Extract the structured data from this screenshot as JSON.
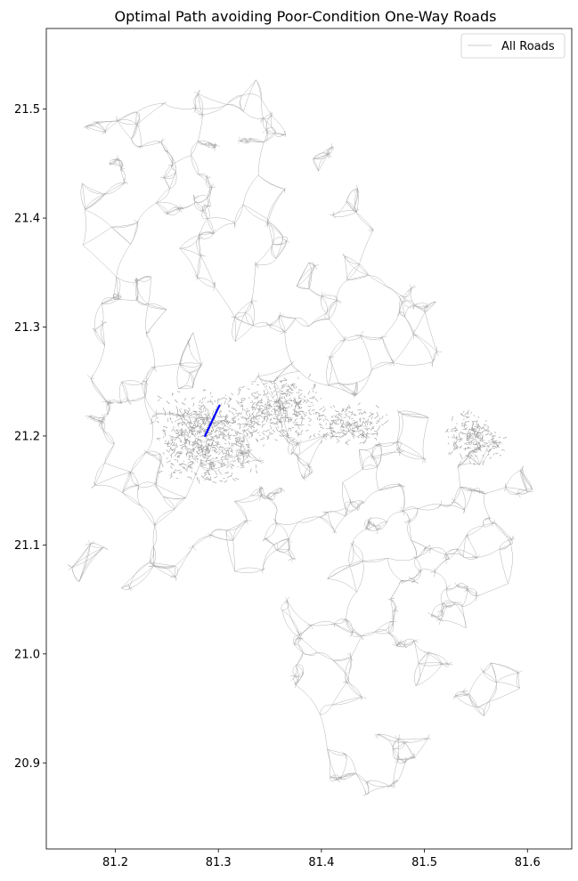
{
  "chart_data": {
    "type": "map",
    "title": "Optimal Path avoiding Poor-Condition One-Way Roads",
    "xlabel": "",
    "ylabel": "",
    "xlim": [
      81.133,
      81.643
    ],
    "ylim": [
      20.821,
      21.574
    ],
    "x_ticks": [
      81.2,
      81.3,
      81.4,
      81.5,
      81.6
    ],
    "x_tick_labels": [
      "81.2",
      "81.3",
      "81.4",
      "81.5",
      "81.6"
    ],
    "y_ticks": [
      20.9,
      21.0,
      21.1,
      21.2,
      21.3,
      21.4,
      21.5
    ],
    "y_tick_labels": [
      "20.9",
      "21.0",
      "21.1",
      "21.2",
      "21.3",
      "21.4",
      "21.5"
    ],
    "grid": false,
    "legend": {
      "position": "top-right",
      "entries": [
        {
          "label": "All Roads",
          "color": "#bbbbbb"
        }
      ]
    },
    "series": [
      {
        "name": "All Roads",
        "color": "#a6a6a6",
        "region_outline": [
          [
            81.165,
            21.495
          ],
          [
            81.2,
            21.51
          ],
          [
            81.255,
            21.525
          ],
          [
            81.31,
            21.535
          ],
          [
            81.355,
            21.53
          ],
          [
            81.39,
            21.5
          ],
          [
            81.415,
            21.47
          ],
          [
            81.44,
            21.43
          ],
          [
            81.455,
            21.395
          ],
          [
            81.46,
            21.365
          ],
          [
            81.485,
            21.35
          ],
          [
            81.515,
            21.34
          ],
          [
            81.52,
            21.3
          ],
          [
            81.51,
            21.27
          ],
          [
            81.515,
            21.245
          ],
          [
            81.545,
            21.225
          ],
          [
            81.585,
            21.195
          ],
          [
            81.615,
            21.17
          ],
          [
            81.605,
            21.13
          ],
          [
            81.585,
            21.1
          ],
          [
            81.585,
            21.06
          ],
          [
            81.575,
            21.03
          ],
          [
            81.595,
            21.0
          ],
          [
            81.6,
            20.96
          ],
          [
            81.575,
            20.94
          ],
          [
            81.52,
            20.92
          ],
          [
            81.49,
            20.9
          ],
          [
            81.47,
            20.87
          ],
          [
            81.44,
            20.86
          ],
          [
            81.41,
            20.855
          ],
          [
            81.395,
            20.87
          ],
          [
            81.385,
            20.905
          ],
          [
            81.37,
            20.93
          ],
          [
            81.365,
            20.97
          ],
          [
            81.35,
            21.01
          ],
          [
            81.345,
            21.05
          ],
          [
            81.3,
            21.06
          ],
          [
            81.255,
            21.055
          ],
          [
            81.2,
            21.05
          ],
          [
            81.15,
            21.06
          ],
          [
            81.155,
            21.1
          ],
          [
            81.17,
            21.14
          ],
          [
            81.155,
            21.18
          ],
          [
            81.16,
            21.24
          ],
          [
            81.175,
            21.29
          ],
          [
            81.165,
            21.34
          ],
          [
            81.165,
            21.4
          ],
          [
            81.16,
            21.45
          ]
        ],
        "urban_clusters": [
          {
            "center": [
              81.29,
              21.2
            ],
            "spread": [
              0.055,
              0.045
            ]
          },
          {
            "center": [
              81.36,
              21.225
            ],
            "spread": [
              0.045,
              0.03
            ]
          },
          {
            "center": [
              81.43,
              21.21
            ],
            "spread": [
              0.035,
              0.02
            ]
          },
          {
            "center": [
              81.55,
              21.2
            ],
            "spread": [
              0.03,
              0.025
            ]
          }
        ]
      },
      {
        "name": "Optimal Path",
        "color": "#0000ff",
        "points": [
          [
            81.301,
            21.228
          ],
          [
            81.296,
            21.218
          ],
          [
            81.291,
            21.208
          ],
          [
            81.287,
            21.2
          ]
        ]
      }
    ]
  }
}
